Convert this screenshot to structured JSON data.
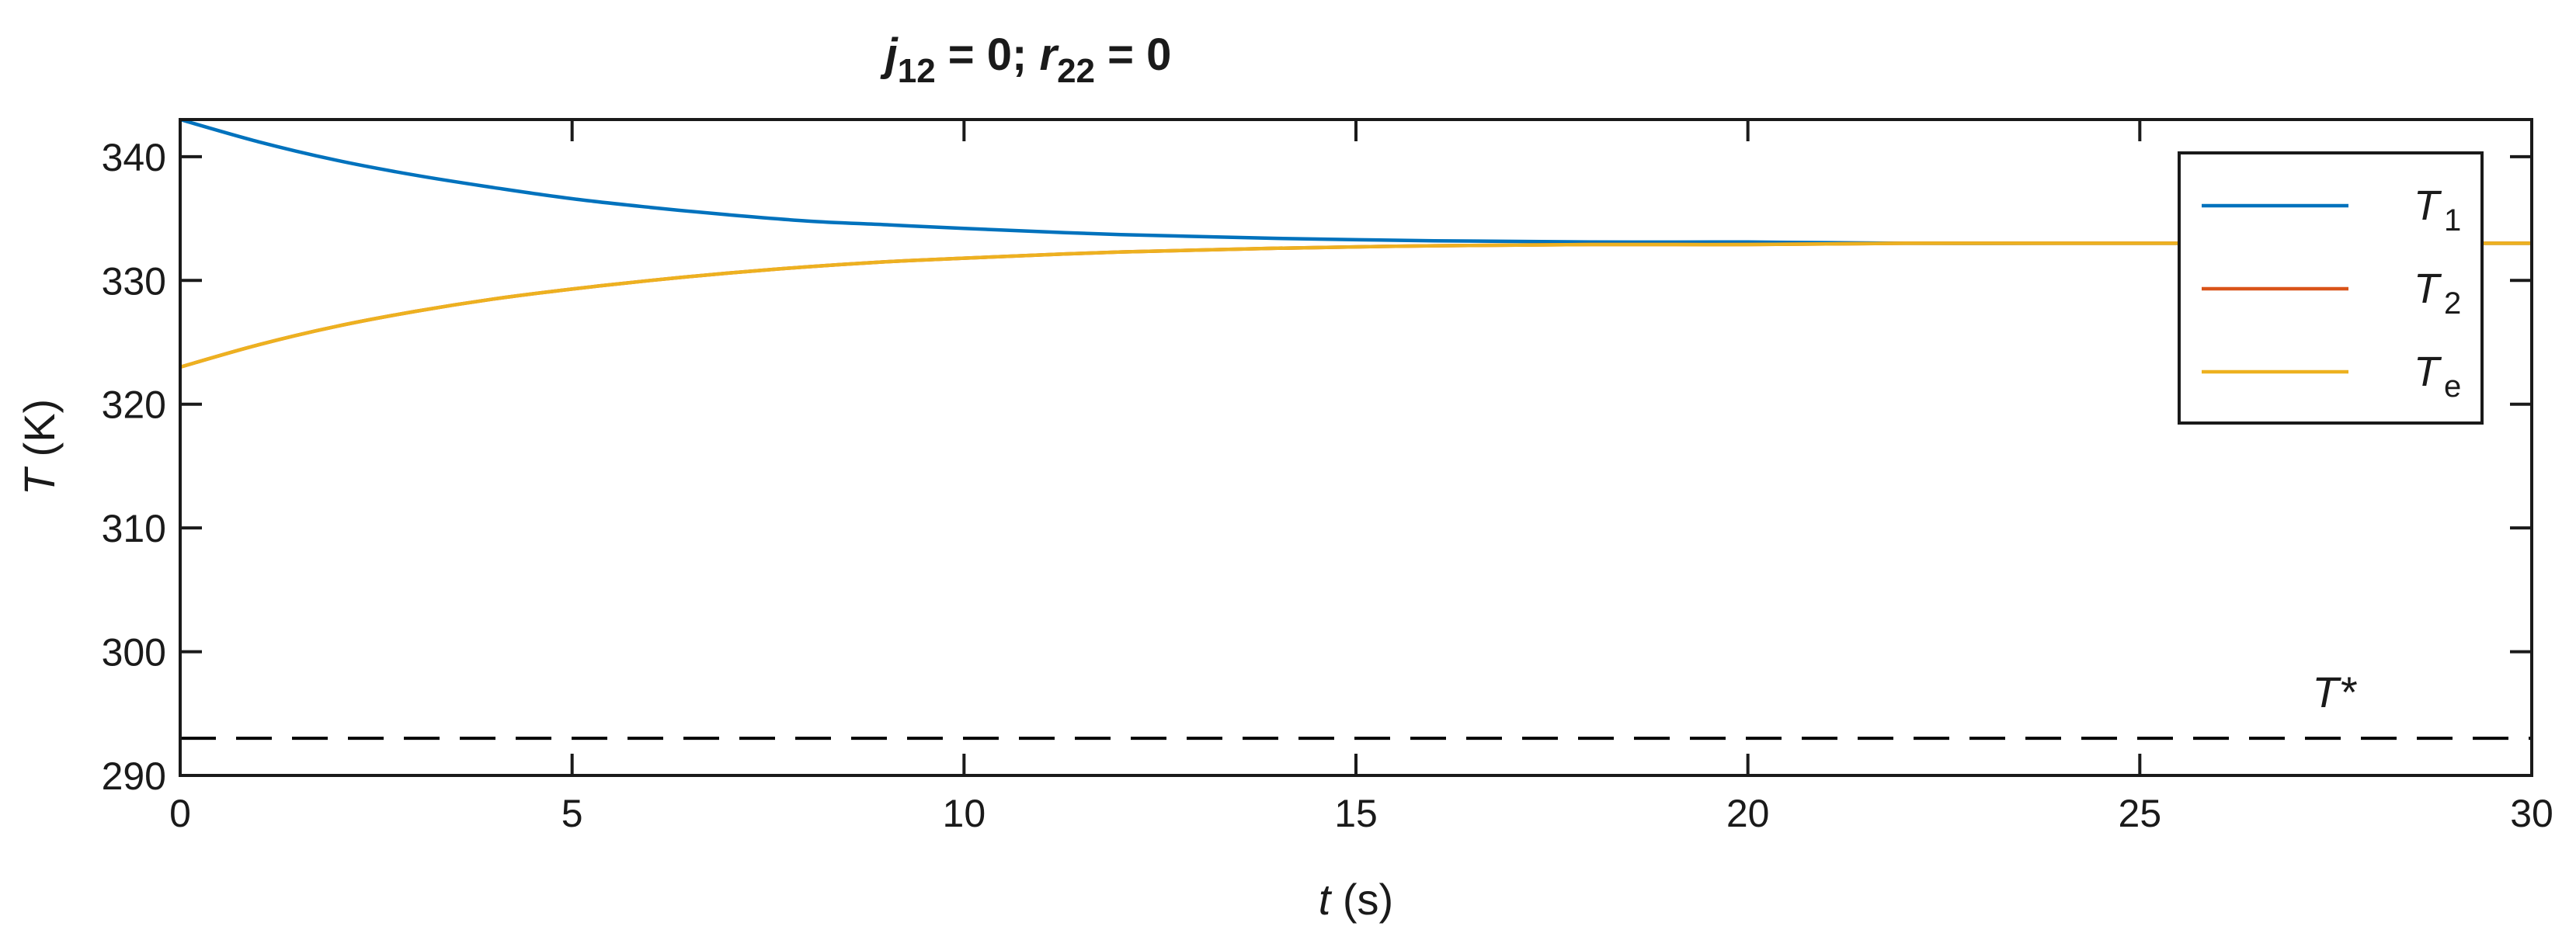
{
  "chart_data": {
    "type": "line",
    "title": {
      "v1": "j",
      "s1": "12",
      "m1": " = 0; ",
      "v2": "r",
      "s2": "22",
      "m2": " = 0"
    },
    "xlabel": {
      "var": "t",
      "unit": " (s)"
    },
    "ylabel": {
      "var": "T",
      "unit": " (K)"
    },
    "xlim": [
      0,
      30
    ],
    "ylim": [
      290,
      343
    ],
    "xticks": [
      0,
      5,
      10,
      15,
      20,
      25,
      30
    ],
    "yticks": [
      290,
      300,
      310,
      320,
      330,
      340
    ],
    "grid": false,
    "legend_position": "top-right",
    "series": [
      {
        "name": {
          "var": "T",
          "sub": "1"
        },
        "color": "#0072BD",
        "x": [
          0,
          1,
          2,
          3,
          4,
          5,
          6,
          7,
          8,
          9,
          10,
          12,
          14,
          16,
          18,
          20,
          22,
          24,
          26,
          28,
          30
        ],
        "values": [
          343.0,
          341.2,
          339.7,
          338.5,
          337.5,
          336.6,
          335.9,
          335.3,
          334.8,
          334.5,
          334.2,
          333.7,
          333.4,
          333.2,
          333.1,
          333.1,
          333.0,
          333.0,
          333.0,
          333.0,
          333.0
        ]
      },
      {
        "name": {
          "var": "T",
          "sub": "2"
        },
        "color": "#D95319",
        "x": [
          0,
          1,
          2,
          3,
          4,
          5,
          6,
          7,
          8,
          9,
          10,
          12,
          14,
          16,
          18,
          20,
          22,
          24,
          26,
          28,
          30
        ],
        "values": [
          323.0,
          324.8,
          326.3,
          327.5,
          328.5,
          329.3,
          330.0,
          330.6,
          331.1,
          331.5,
          331.8,
          332.3,
          332.6,
          332.8,
          332.9,
          332.9,
          333.0,
          333.0,
          333.0,
          333.0,
          333.0
        ]
      },
      {
        "name": {
          "var": "T",
          "sub": "e"
        },
        "color": "#EDB120",
        "x": [
          0,
          1,
          2,
          3,
          4,
          5,
          6,
          7,
          8,
          9,
          10,
          12,
          14,
          16,
          18,
          20,
          22,
          24,
          26,
          28,
          30
        ],
        "values": [
          323.0,
          324.8,
          326.3,
          327.5,
          328.5,
          329.3,
          330.0,
          330.6,
          331.1,
          331.5,
          331.8,
          332.3,
          332.6,
          332.8,
          332.9,
          332.9,
          333.0,
          333.0,
          333.0,
          333.0,
          333.0
        ]
      }
    ],
    "reference_line": {
      "value": 293,
      "label": "T*",
      "style": "dashed",
      "color": "#000000"
    }
  }
}
